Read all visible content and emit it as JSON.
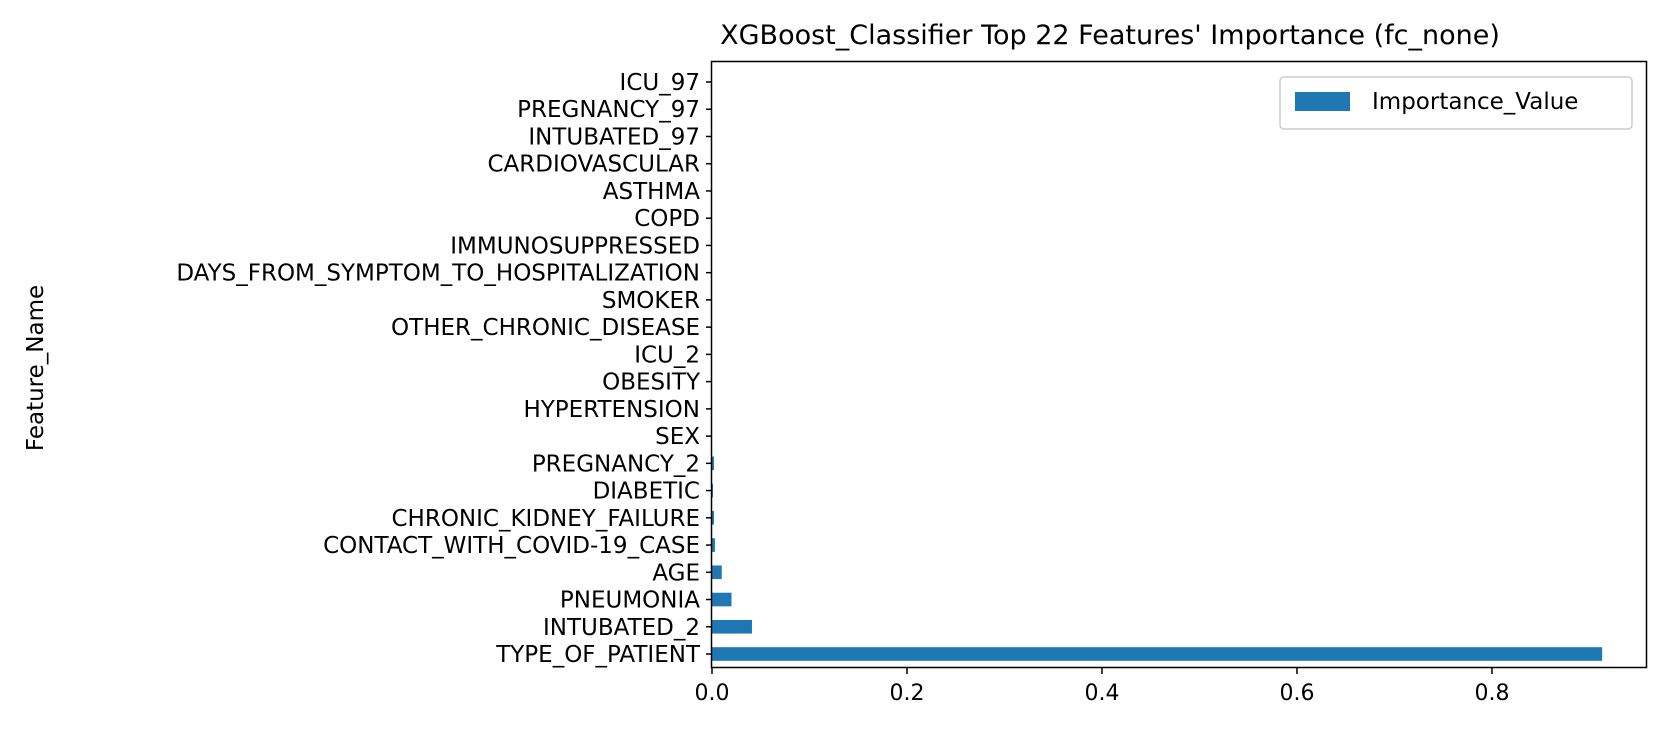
{
  "chart_data": {
    "type": "bar",
    "orientation": "horizontal",
    "title": "XGBoost_Classifier Top 22 Features' Importance (fc_none)",
    "xlabel": "",
    "ylabel": "Feature_Name",
    "categories": [
      "ICU_97",
      "PREGNANCY_97",
      "INTUBATED_97",
      "CARDIOVASCULAR",
      "ASTHMA",
      "COPD",
      "IMMUNOSUPPRESSED",
      "DAYS_FROM_SYMPTOM_TO_HOSPITALIZATION",
      "SMOKER",
      "OTHER_CHRONIC_DISEASE",
      "ICU_2",
      "OBESITY",
      "HYPERTENSION",
      "SEX",
      "PREGNANCY_2",
      "DIABETIC",
      "CHRONIC_KIDNEY_FAILURE",
      "CONTACT_WITH_COVID-19_CASE",
      "AGE",
      "PNEUMONIA",
      "INTUBATED_2",
      "TYPE_OF_PATIENT"
    ],
    "series": [
      {
        "name": "Importance_Value",
        "color": "#1f77b4",
        "values": [
          0.0,
          0.0,
          0.0,
          0.0,
          0.0,
          0.0,
          0.0,
          0.0,
          0.0,
          0.0,
          0.0,
          0.0,
          0.0,
          0.0,
          0.002,
          0.001,
          0.002,
          0.003,
          0.01,
          0.02,
          0.041,
          0.913
        ]
      }
    ],
    "xlim": [
      0,
      0.958
    ],
    "xticks": [
      "0.0",
      "0.2",
      "0.4",
      "0.6",
      "0.8"
    ],
    "grid": false,
    "legend_position": "upper right"
  }
}
